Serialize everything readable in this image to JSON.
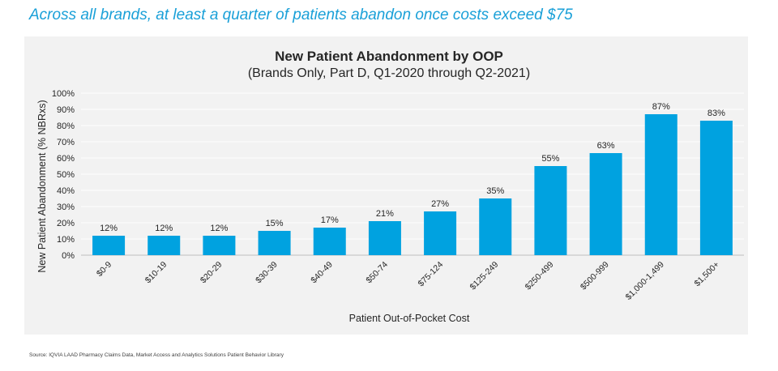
{
  "headline": "Across all brands, at least a quarter of patients abandon once costs exceed $75",
  "source_note": "Source: IQVIA LAAD Pharmacy Claims Data, Market Access and Analytics Solutions Patient Behavior Library",
  "colors": {
    "headline": "#1aa0d8",
    "bar": "#00a2e0",
    "panel": "#f2f2f2",
    "grid": "#ffffff"
  },
  "chart_data": {
    "type": "bar",
    "title": "New Patient Abandonment by OOP",
    "subtitle": "(Brands Only, Part D, Q1-2020 through Q2-2021)",
    "xlabel": "Patient Out-of-Pocket Cost",
    "ylabel": "New Patient Abandonment (% NBRxs)",
    "categories": [
      "$0-9",
      "$10-19",
      "$20-29",
      "$30-39",
      "$40-49",
      "$50-74",
      "$75-124",
      "$125-249",
      "$250-499",
      "$500-999",
      "$1,000-1,499",
      "$1,500+"
    ],
    "values": [
      12,
      12,
      12,
      15,
      17,
      21,
      27,
      35,
      55,
      63,
      87,
      83
    ],
    "data_labels": [
      "12%",
      "12%",
      "12%",
      "15%",
      "17%",
      "21%",
      "27%",
      "35%",
      "55%",
      "63%",
      "87%",
      "83%"
    ],
    "ylim": [
      0,
      100
    ],
    "yticks": [
      "0%",
      "10%",
      "20%",
      "30%",
      "40%",
      "50%",
      "60%",
      "70%",
      "80%",
      "90%",
      "100%"
    ],
    "grid": true,
    "legend": "none"
  }
}
